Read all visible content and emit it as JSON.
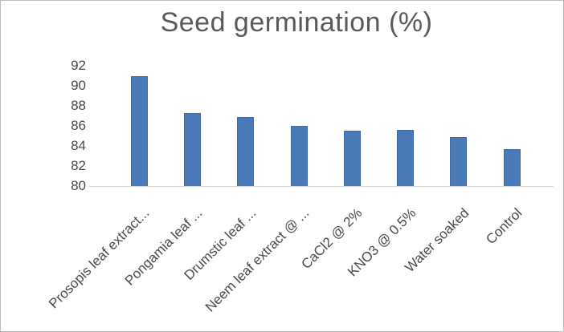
{
  "chart_data": {
    "type": "bar",
    "title": "Seed germination (%)",
    "categories": [
      "Prosopis leaf extract...",
      "Pongamia leaf ...",
      "Drumstic leaf ...",
      "Neem leaf extract @ ...",
      "CaCl2 @ 2%",
      "KNO3 @ 0.5%",
      "Water soaked",
      "Control"
    ],
    "values": [
      91,
      87.3,
      86.9,
      86,
      85.5,
      85.6,
      84.9,
      83.7
    ],
    "xlabel": "",
    "ylabel": "",
    "ylim": [
      80,
      92
    ],
    "y_ticks": [
      80,
      82,
      84,
      86,
      88,
      90,
      92
    ],
    "grid": false,
    "legend": false,
    "x_label_rotation_deg": 45,
    "bar_color": "#4b7ab9",
    "bar_border_color": "#3e68a4",
    "axis_line_color": "#d6d6d6",
    "tick_text_color": "#4a4a4a",
    "title_color": "#595959"
  }
}
